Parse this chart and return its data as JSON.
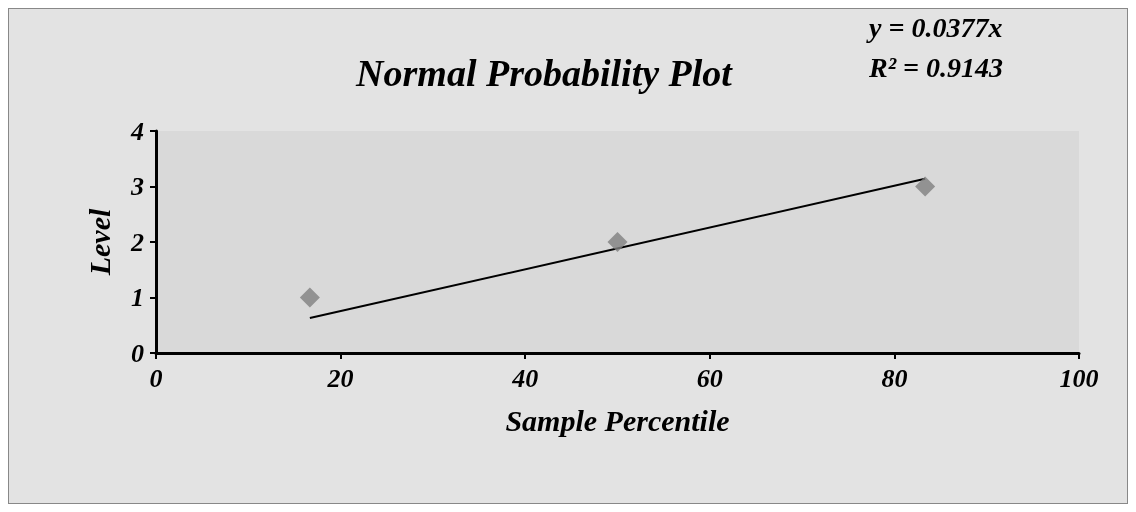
{
  "chart_data": {
    "type": "scatter",
    "title": "Normal Probability Plot",
    "xlabel": "Sample Percentile",
    "ylabel": "Level",
    "annotations": [
      "y = 0.0377x",
      "R² = 0.9143"
    ],
    "xlim": [
      0,
      100
    ],
    "xticks": [
      0,
      20,
      40,
      60,
      80,
      100
    ],
    "ylim": [
      0,
      4
    ],
    "yticks": [
      0,
      1,
      2,
      3,
      4
    ],
    "grid": false,
    "series": [
      {
        "color": "#808080",
        "marker": "diamond",
        "x": [
          16.67,
          50,
          83.33
        ],
        "values": [
          1,
          2,
          3
        ]
      },
      {
        "type": "line",
        "color": "#000000",
        "marker": "none",
        "line_style": "solid",
        "x": [
          16.67,
          83.33
        ],
        "values": [
          0.63,
          3.14
        ]
      }
    ]
  }
}
